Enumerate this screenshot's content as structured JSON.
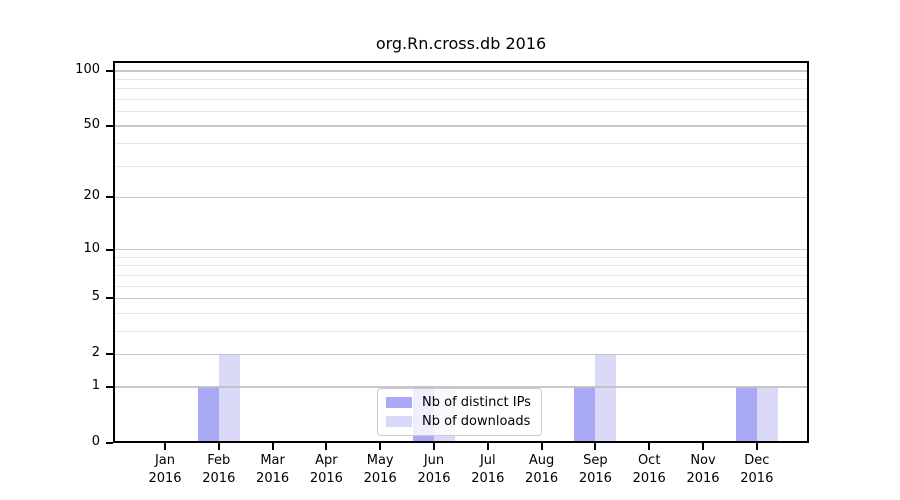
{
  "chart_data": {
    "type": "bar",
    "title": "org.Rn.cross.db 2016",
    "categories": [
      "Jan",
      "Feb",
      "Mar",
      "Apr",
      "May",
      "Jun",
      "Jul",
      "Aug",
      "Sep",
      "Oct",
      "Nov",
      "Dec"
    ],
    "category_year": "2016",
    "series": [
      {
        "name": "Nb of distinct IPs",
        "color": "#a9a9f5",
        "values": [
          0,
          1,
          0,
          0,
          0,
          1,
          0,
          0,
          1,
          0,
          0,
          1
        ]
      },
      {
        "name": "Nb of downloads",
        "color": "#dadaf8",
        "values": [
          0,
          2,
          0,
          0,
          0,
          1,
          0,
          0,
          2,
          0,
          0,
          1
        ]
      }
    ],
    "y_scale": "log1p",
    "y_ticks": [
      0,
      1,
      2,
      5,
      10,
      20,
      50,
      100
    ],
    "y_minor_ticks": [
      3,
      4,
      6,
      7,
      8,
      9,
      30,
      40,
      60,
      70,
      80,
      90
    ],
    "ylim": [
      0,
      113
    ],
    "xlabel": "",
    "ylabel": "",
    "grid": "horizontal",
    "legend_position": "lower-center-inside"
  },
  "colors": {
    "major_grid": "#bebebe",
    "minor_grid": "#e1e1e1",
    "axis": "#000000",
    "background": "#ffffff"
  }
}
